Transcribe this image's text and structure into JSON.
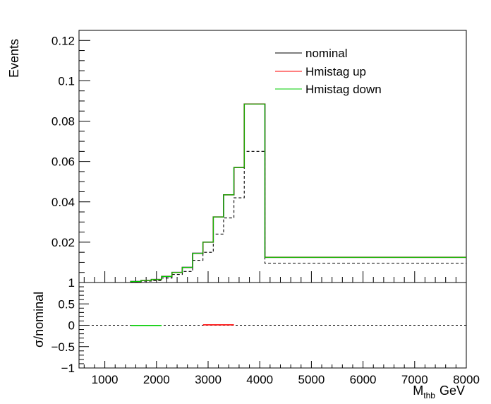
{
  "chart_data": [
    {
      "type": "line",
      "style": "step-histogram",
      "ylabel": "Events",
      "xlim": [
        500,
        8000
      ],
      "ylim": [
        0,
        0.125
      ],
      "yticks": [
        "0.02",
        "0.04",
        "0.06",
        "0.08",
        "0.1",
        "0.12"
      ],
      "ytick_values": [
        0.02,
        0.04,
        0.06,
        0.08,
        0.1,
        0.12
      ],
      "bin_edges": [
        1500,
        1700,
        1900,
        2100,
        2300,
        2500,
        2700,
        2900,
        3100,
        3300,
        3500,
        3700,
        4100,
        8000
      ],
      "legend": {
        "position": "top-right"
      },
      "series": [
        {
          "name": "nominal",
          "color": "#000000",
          "values": [
            0.0005,
            0.001,
            0.0015,
            0.003,
            0.005,
            0.0075,
            0.0145,
            0.02,
            0.0325,
            0.0435,
            0.057,
            0.0885,
            0.0125
          ]
        },
        {
          "name": "Hmistag up",
          "color": "#ff0000",
          "values": [
            0.0005,
            0.001,
            0.0015,
            0.003,
            0.005,
            0.0075,
            0.0145,
            0.02,
            0.0325,
            0.0435,
            0.057,
            0.0885,
            0.0125
          ]
        },
        {
          "name": "Hmistag down",
          "color": "#00cc00",
          "values": [
            0.0005,
            0.001,
            0.0015,
            0.003,
            0.005,
            0.0075,
            0.0145,
            0.02,
            0.0325,
            0.0435,
            0.057,
            0.0885,
            0.0125
          ]
        },
        {
          "color": "#000000",
          "dashed": true,
          "values": [
            0.0003,
            0.0007,
            0.001,
            0.0022,
            0.004,
            0.0055,
            0.011,
            0.015,
            0.024,
            0.032,
            0.042,
            0.065,
            0.0095
          ]
        }
      ]
    },
    {
      "type": "line",
      "ylabel": "σ/nominal",
      "xlabel_main": "M",
      "xlabel_sub": "thb",
      "xlabel_unit": "GeV",
      "xlim": [
        500,
        8000
      ],
      "ylim": [
        -1,
        1
      ],
      "xticks": [
        "1000",
        "2000",
        "3000",
        "4000",
        "5000",
        "6000",
        "7000",
        "8000"
      ],
      "xtick_values": [
        1000,
        2000,
        3000,
        4000,
        5000,
        6000,
        7000,
        8000
      ],
      "yticks": [
        "−1",
        "−0.5",
        "0",
        "0.5",
        "1"
      ],
      "ytick_values": [
        -1,
        -0.5,
        0,
        0.5,
        1
      ],
      "reference_line": 0,
      "segments": [
        {
          "x": [
            1500,
            2100
          ],
          "y": -0.005,
          "color": "#00cc00"
        },
        {
          "x": [
            2900,
            3500
          ],
          "y": 0.01,
          "color": "#ff0000"
        }
      ]
    }
  ]
}
